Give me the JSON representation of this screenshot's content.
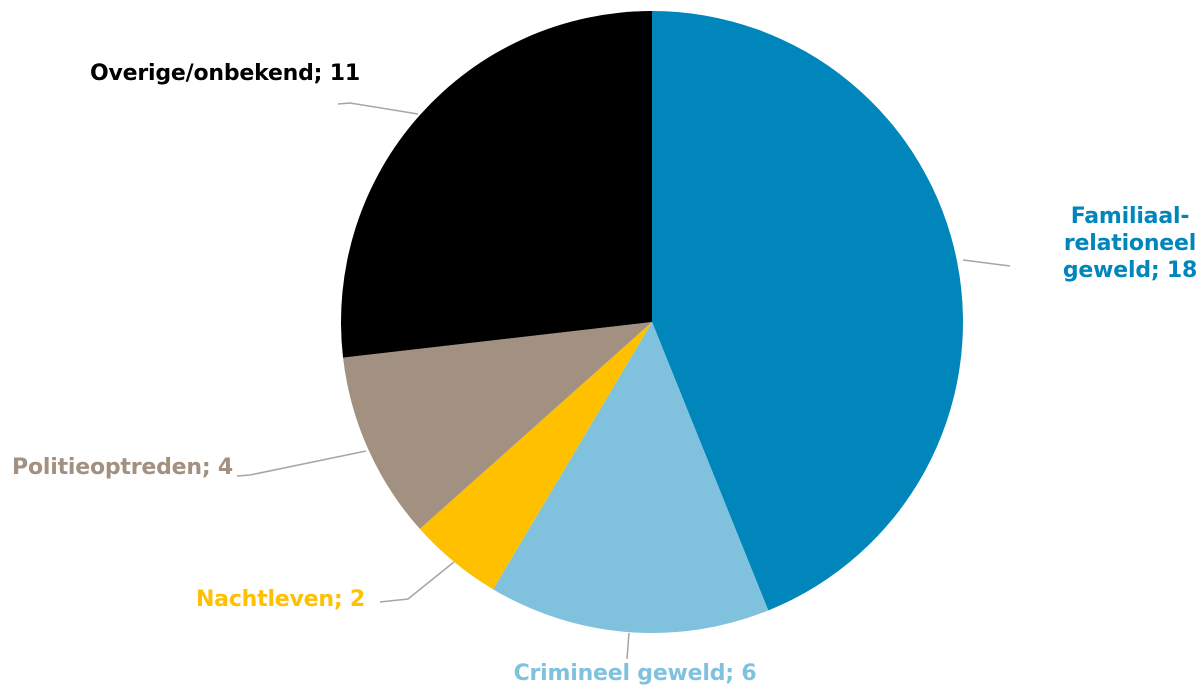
{
  "chart_data": {
    "type": "pie",
    "slices": [
      {
        "label": "Familiaal-relationeel geweld",
        "label_lines": [
          "Familiaal-",
          "relationeel",
          "geweld; 18"
        ],
        "value": 18,
        "color": "#0086BA",
        "text_color": "#0086BA"
      },
      {
        "label": "Crimineel geweld",
        "label_lines": [
          "Crimineel geweld; 6"
        ],
        "value": 6,
        "color": "#80C2DE",
        "text_color": "#80C2DE"
      },
      {
        "label": "Nachtleven",
        "label_lines": [
          "Nachtleven; 2"
        ],
        "value": 2,
        "color": "#FFC000",
        "text_color": "#FFC000"
      },
      {
        "label": "Politieoptreden",
        "label_lines": [
          "Politieoptreden; 4"
        ],
        "value": 4,
        "color": "#A29180",
        "text_color": "#A29180"
      },
      {
        "label": "Overige/onbekend",
        "label_lines": [
          "Overige/onbekend; 11"
        ],
        "value": 11,
        "color": "#000000",
        "text_color": "#000000"
      }
    ],
    "start_angle": "12 o'clock",
    "direction": "clockwise",
    "label_separator": "; ",
    "leader_line_color": "#A6A6A6"
  }
}
